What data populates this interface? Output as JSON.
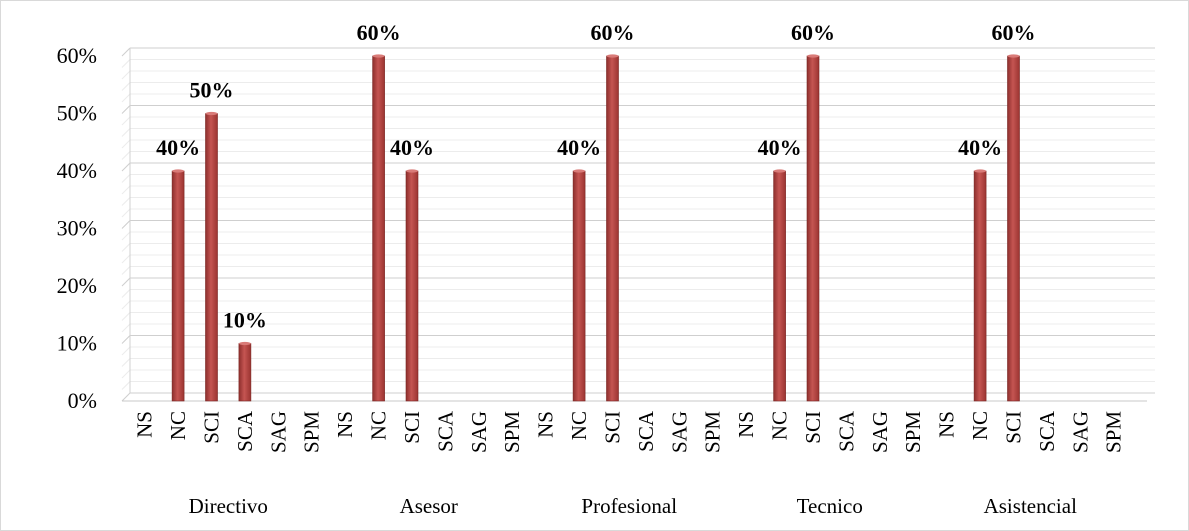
{
  "chart_data": {
    "type": "bar",
    "title": "",
    "xlabel": "",
    "ylabel": "",
    "ylim": [
      0,
      0.6
    ],
    "yticks": [
      "0%",
      "10%",
      "20%",
      "30%",
      "40%",
      "50%",
      "60%"
    ],
    "grid": true,
    "legend": "none",
    "bar_color": "#c0504d",
    "groups": [
      {
        "label": "Directivo",
        "categories": [
          "NS",
          "NC",
          "SCI",
          "SCA",
          "SAG",
          "SPM"
        ],
        "values": [
          0,
          0.4,
          0.5,
          0.1,
          0,
          0
        ],
        "labels": [
          "",
          "40%",
          "50%",
          "10%",
          "",
          ""
        ]
      },
      {
        "label": "Asesor",
        "categories": [
          "NS",
          "NC",
          "SCI",
          "SCA",
          "SAG",
          "SPM"
        ],
        "values": [
          0,
          0.6,
          0.4,
          0,
          0,
          0
        ],
        "labels": [
          "",
          "60%",
          "40%",
          "",
          "",
          ""
        ]
      },
      {
        "label": "Profesional",
        "categories": [
          "NS",
          "NC",
          "SCI",
          "SCA",
          "SAG",
          "SPM"
        ],
        "values": [
          0,
          0.4,
          0.6,
          0,
          0,
          0
        ],
        "labels": [
          "",
          "40%",
          "60%",
          "",
          "",
          ""
        ]
      },
      {
        "label": "Tecnico",
        "categories": [
          "NS",
          "NC",
          "SCI",
          "SCA",
          "SAG",
          "SPM"
        ],
        "values": [
          0,
          0.4,
          0.6,
          0,
          0,
          0
        ],
        "labels": [
          "",
          "40%",
          "60%",
          "",
          "",
          ""
        ]
      },
      {
        "label": "Asistencial",
        "categories": [
          "NS",
          "NC",
          "SCI",
          "SCA",
          "SAG",
          "SPM"
        ],
        "values": [
          0,
          0.4,
          0.6,
          0,
          0,
          0
        ],
        "labels": [
          "",
          "40%",
          "60%",
          "",
          "",
          ""
        ]
      }
    ]
  }
}
